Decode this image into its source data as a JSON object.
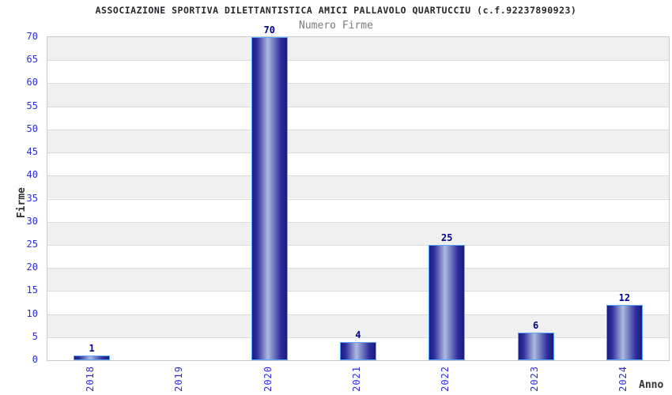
{
  "chart_data": {
    "type": "bar",
    "title": "ASSOCIAZIONE SPORTIVA DILETTANTISTICA AMICI PALLAVOLO QUARTUCCIU (c.f.92237890923)",
    "subtitle": "Numero Firme",
    "categories": [
      "2018",
      "2019",
      "2020",
      "2021",
      "2022",
      "2023",
      "2024"
    ],
    "values": [
      1,
      0,
      70,
      4,
      25,
      6,
      12
    ],
    "xlabel": "Anno",
    "ylabel": "Firme",
    "ylim": [
      0,
      70
    ],
    "ytick_step": 5,
    "yticks": [
      0,
      5,
      10,
      15,
      20,
      25,
      30,
      35,
      40,
      45,
      50,
      55,
      60,
      65,
      70
    ],
    "grid": "horizontal gridlines every 5 units with alternating gray/white bands",
    "legend_position": "none",
    "value_label_rule": "shown above bar only when value > 0"
  },
  "colors": {
    "title": "#26262B",
    "subtitle": "#7B7B7B",
    "tick_label": "#2B2BD9",
    "value_label": "#00008B",
    "axis_title": "#333333",
    "bar_dark": "#1B1B80",
    "bar_mid": "#2E2E9C",
    "bar_light": "#AEBBE0",
    "bar_border": "#58A6FF",
    "band_gray": "#F0F0F0",
    "band_white": "#FFFFFF",
    "grid_line": "#DCDCDC",
    "plot_border": "#C9C9C9",
    "background": "#FFFFFF"
  }
}
